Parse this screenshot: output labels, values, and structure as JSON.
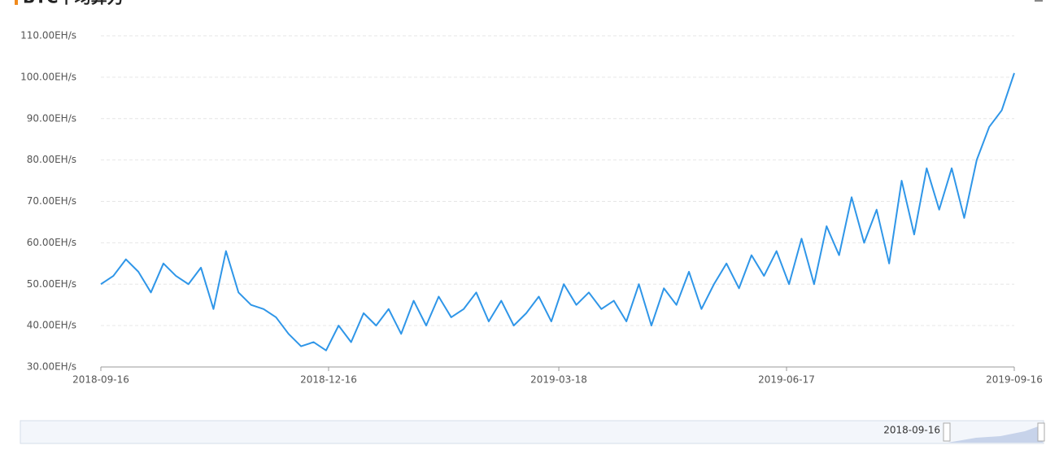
{
  "chart_data": {
    "type": "line",
    "title": "BTC平均算力",
    "x": [
      "2018-09-16",
      "2018-09-21",
      "2018-09-26",
      "2018-10-01",
      "2018-10-06",
      "2018-10-11",
      "2018-10-16",
      "2018-10-21",
      "2018-10-26",
      "2018-10-31",
      "2018-11-05",
      "2018-11-10",
      "2018-11-15",
      "2018-11-20",
      "2018-11-25",
      "2018-11-30",
      "2018-12-05",
      "2018-12-10",
      "2018-12-15",
      "2018-12-20",
      "2018-12-25",
      "2018-12-30",
      "2019-01-04",
      "2019-01-09",
      "2019-01-14",
      "2019-01-19",
      "2019-01-24",
      "2019-01-29",
      "2019-02-03",
      "2019-02-08",
      "2019-02-13",
      "2019-02-18",
      "2019-02-23",
      "2019-02-28",
      "2019-03-05",
      "2019-03-10",
      "2019-03-15",
      "2019-03-20",
      "2019-03-25",
      "2019-03-30",
      "2019-04-04",
      "2019-04-09",
      "2019-04-14",
      "2019-04-19",
      "2019-04-24",
      "2019-04-29",
      "2019-05-04",
      "2019-05-09",
      "2019-05-14",
      "2019-05-19",
      "2019-05-24",
      "2019-05-29",
      "2019-06-03",
      "2019-06-08",
      "2019-06-13",
      "2019-06-18",
      "2019-06-23",
      "2019-06-28",
      "2019-07-03",
      "2019-07-08",
      "2019-07-13",
      "2019-07-18",
      "2019-07-23",
      "2019-07-28",
      "2019-08-02",
      "2019-08-07",
      "2019-08-12",
      "2019-08-17",
      "2019-08-22",
      "2019-08-27",
      "2019-09-01",
      "2019-09-06",
      "2019-09-11",
      "2019-09-16"
    ],
    "series": [
      {
        "color": "#2f96e8",
        "values": [
          50,
          52,
          56,
          53,
          48,
          55,
          52,
          50,
          54,
          44,
          58,
          48,
          45,
          44,
          42,
          38,
          35,
          36,
          34,
          40,
          36,
          43,
          40,
          44,
          38,
          46,
          40,
          47,
          42,
          44,
          48,
          41,
          46,
          40,
          43,
          47,
          41,
          50,
          45,
          48,
          44,
          46,
          41,
          50,
          40,
          49,
          45,
          53,
          44,
          50,
          55,
          49,
          57,
          52,
          58,
          50,
          61,
          50,
          64,
          57,
          71,
          60,
          68,
          55,
          75,
          62,
          78,
          68,
          78,
          66,
          80,
          88,
          92,
          101
        ]
      }
    ],
    "xlim": [
      "2018-09-16",
      "2019-09-16"
    ],
    "xticks": [
      "2018-09-16",
      "2018-12-16",
      "2019-03-18",
      "2019-06-17",
      "2019-09-16"
    ],
    "ylim": [
      30,
      110
    ],
    "yticks": [
      {
        "value": 30,
        "label": "30.00EH/s"
      },
      {
        "value": 40,
        "label": "40.00EH/s"
      },
      {
        "value": 50,
        "label": "50.00EH/s"
      },
      {
        "value": 60,
        "label": "60.00EH/s"
      },
      {
        "value": 70,
        "label": "70.00EH/s"
      },
      {
        "value": 80,
        "label": "80.00EH/s"
      },
      {
        "value": 90,
        "label": "90.00EH/s"
      },
      {
        "value": 100,
        "label": "100.00EH/s"
      },
      {
        "value": 110,
        "label": "110.00EH/s"
      }
    ],
    "grid": true
  },
  "data_zoom": {
    "label": "2018-09-16"
  }
}
